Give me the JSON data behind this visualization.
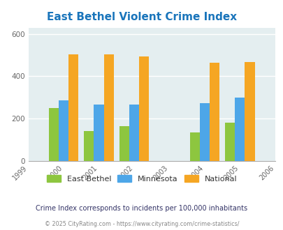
{
  "title": "East Bethel Violent Crime Index",
  "years": [
    1999,
    2000,
    2001,
    2002,
    2003,
    2004,
    2005,
    2006
  ],
  "data_years": [
    2000,
    2001,
    2002,
    2004,
    2005
  ],
  "east_bethel": [
    250,
    142,
    163,
    135,
    180
  ],
  "minnesota": [
    285,
    265,
    268,
    272,
    300
  ],
  "national": [
    505,
    505,
    494,
    463,
    469
  ],
  "color_east_bethel": "#8dc63f",
  "color_minnesota": "#4da6e8",
  "color_national": "#f5a623",
  "bg_color": "#e4eef0",
  "ylim": [
    0,
    630
  ],
  "yticks": [
    0,
    200,
    400,
    600
  ],
  "grid_color": "#ffffff",
  "title_color": "#1a75bb",
  "subtitle": "Crime Index corresponds to incidents per 100,000 inhabitants",
  "footer": "© 2025 CityRating.com - https://www.cityrating.com/crime-statistics/",
  "legend_labels": [
    "East Bethel",
    "Minnesota",
    "National"
  ],
  "bar_width": 0.28
}
